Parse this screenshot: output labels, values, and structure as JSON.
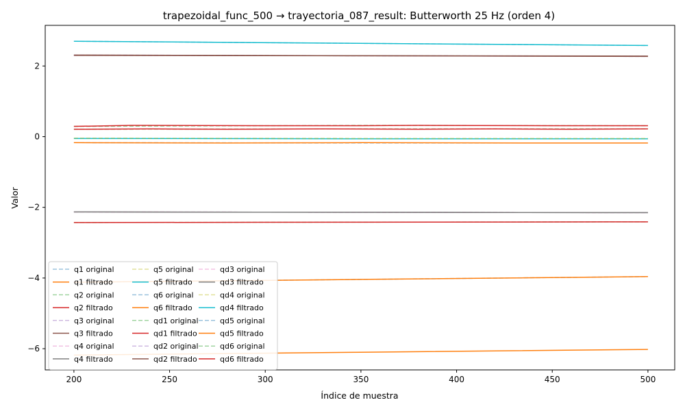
{
  "chart_data": {
    "type": "line",
    "title": "trapezoidal_func_500 → trayectoria_087_result: Butterworth 25 Hz (orden 4)",
    "xlabel": "Índice de muestra",
    "ylabel": "Valor",
    "xlim": [
      185,
      514
    ],
    "ylim": [
      -6.6,
      3.15
    ],
    "xticks": [
      200,
      250,
      300,
      350,
      400,
      450,
      500
    ],
    "yticks": [
      -6,
      -4,
      -2,
      0,
      2
    ],
    "ytick_labels": [
      "−6",
      "−4",
      "−2",
      "0",
      "2"
    ],
    "legend": {
      "placement": "lower-left",
      "columns": 3
    },
    "series": [
      {
        "name": "q1 original",
        "color": "#1f77b4",
        "style": "dashed",
        "x": [
          200,
          350,
          500
        ],
        "y": [
          -4.12,
          -4.04,
          -3.96
        ]
      },
      {
        "name": "q1 filtrado",
        "color": "#ff7f0e",
        "style": "solid",
        "x": [
          200,
          350,
          500
        ],
        "y": [
          -4.12,
          -4.04,
          -3.96
        ]
      },
      {
        "name": "q2 original",
        "color": "#2ca02c",
        "style": "dashed",
        "x": [
          200,
          350,
          500
        ],
        "y": [
          0.29,
          0.32,
          0.31
        ]
      },
      {
        "name": "q2 filtrado",
        "color": "#d62728",
        "style": "solid",
        "x": [
          200,
          230,
          300,
          350,
          380,
          450,
          500
        ],
        "y": [
          0.29,
          0.32,
          0.31,
          0.31,
          0.32,
          0.31,
          0.31
        ]
      },
      {
        "name": "q3 original",
        "color": "#9467bd",
        "style": "dashed",
        "x": [
          200,
          350,
          500
        ],
        "y": [
          2.31,
          2.29,
          2.27
        ]
      },
      {
        "name": "q3 filtrado",
        "color": "#8c564b",
        "style": "solid",
        "x": [
          200,
          350,
          500
        ],
        "y": [
          2.31,
          2.29,
          2.27
        ]
      },
      {
        "name": "q4 original",
        "color": "#e377c2",
        "style": "dashed",
        "x": [
          200,
          350,
          500
        ],
        "y": [
          -2.13,
          -2.14,
          -2.15
        ]
      },
      {
        "name": "q4 filtrado",
        "color": "#7f7f7f",
        "style": "solid",
        "x": [
          200,
          350,
          500
        ],
        "y": [
          -2.13,
          -2.14,
          -2.15
        ]
      },
      {
        "name": "q5 original",
        "color": "#bcbd22",
        "style": "dashed",
        "x": [
          200,
          350,
          500
        ],
        "y": [
          -0.05,
          -0.06,
          -0.06
        ]
      },
      {
        "name": "q5 filtrado",
        "color": "#17becf",
        "style": "solid",
        "x": [
          200,
          350,
          500
        ],
        "y": [
          -0.05,
          -0.06,
          -0.06
        ]
      },
      {
        "name": "q6 original",
        "color": "#1f77b4",
        "style": "dashed",
        "x": [
          200,
          350,
          500
        ],
        "y": [
          2.7,
          2.64,
          2.58
        ]
      },
      {
        "name": "q6 filtrado",
        "color": "#ff7f0e",
        "style": "solid",
        "x": [
          200,
          350,
          500
        ],
        "y": [
          -6.18,
          -6.1,
          -6.02
        ]
      },
      {
        "name": "qd1 original",
        "color": "#2ca02c",
        "style": "dashed",
        "x": [
          200,
          350,
          500
        ],
        "y": [
          -2.43,
          -2.42,
          -2.41
        ]
      },
      {
        "name": "qd1 filtrado",
        "color": "#d62728",
        "style": "solid",
        "x": [
          200,
          350,
          500
        ],
        "y": [
          -2.43,
          -2.42,
          -2.41
        ]
      },
      {
        "name": "qd2 original",
        "color": "#9467bd",
        "style": "dashed",
        "x": [
          200,
          350,
          500
        ],
        "y": [
          2.3,
          2.29,
          2.28
        ]
      },
      {
        "name": "qd2 filtrado",
        "color": "#8c564b",
        "style": "solid",
        "x": [
          200,
          350,
          500
        ],
        "y": [
          2.3,
          2.29,
          2.28
        ]
      },
      {
        "name": "qd3 original",
        "color": "#e377c2",
        "style": "dashed",
        "x": [
          200,
          350,
          500
        ],
        "y": [
          -2.13,
          -2.14,
          -2.15
        ]
      },
      {
        "name": "qd3 filtrado",
        "color": "#7f7f7f",
        "style": "solid",
        "x": [
          200,
          350,
          500
        ],
        "y": [
          -2.13,
          -2.14,
          -2.15
        ]
      },
      {
        "name": "qd4 original",
        "color": "#bcbd22",
        "style": "dashed",
        "x": [
          200,
          350,
          500
        ],
        "y": [
          -0.04,
          -0.05,
          -0.05
        ]
      },
      {
        "name": "qd4 filtrado",
        "color": "#17becf",
        "style": "solid",
        "x": [
          200,
          350,
          500
        ],
        "y": [
          2.7,
          2.64,
          2.58
        ]
      },
      {
        "name": "qd5 original",
        "color": "#1f77b4",
        "style": "dashed",
        "x": [
          200,
          350,
          500
        ],
        "y": [
          -0.17,
          -0.18,
          -0.18
        ]
      },
      {
        "name": "qd5 filtrado",
        "color": "#ff7f0e",
        "style": "solid",
        "x": [
          200,
          280,
          350,
          450,
          500
        ],
        "y": [
          -0.17,
          -0.18,
          -0.17,
          -0.18,
          -0.18
        ]
      },
      {
        "name": "qd6 original",
        "color": "#2ca02c",
        "style": "dashed",
        "x": [
          200,
          350,
          500
        ],
        "y": [
          0.21,
          0.22,
          0.22
        ]
      },
      {
        "name": "qd6 filtrado",
        "color": "#d62728",
        "style": "solid",
        "x": [
          200,
          240,
          280,
          330,
          380,
          420,
          460,
          500
        ],
        "y": [
          0.21,
          0.22,
          0.21,
          0.22,
          0.21,
          0.22,
          0.21,
          0.22
        ]
      }
    ]
  }
}
